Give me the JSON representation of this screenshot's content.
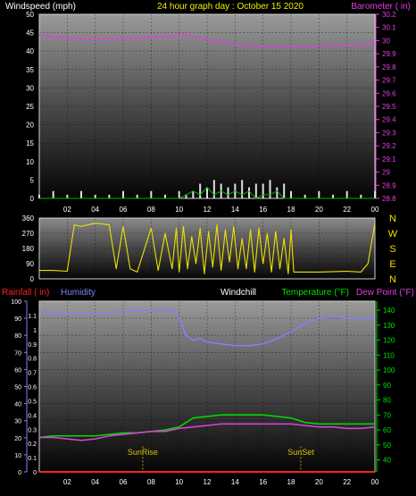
{
  "header": {
    "left": "Windspeed (mph)",
    "center": "24 hour graph day : October 15 2020",
    "right": "Barometer ( in)"
  },
  "colors": {
    "background": "#000000",
    "wind": "#e0e0e0",
    "gust": "#00b000",
    "barometer": "#e040e0",
    "direction": "#f0e000",
    "humidity": "#8080ff",
    "temperature": "#00e000",
    "dewpoint": "#e040e0",
    "rainfall": "#ff2020",
    "windchill": "#ffffff",
    "sun": "#e0c000"
  },
  "time_ticks": [
    "02",
    "04",
    "06",
    "08",
    "10",
    "12",
    "14",
    "16",
    "18",
    "20",
    "22",
    "00"
  ],
  "chart_data": [
    {
      "type": "line",
      "id": "wind_barometer",
      "title": "",
      "ylabel": "Windspeed (mph)",
      "y2label": "Barometer ( in)",
      "ylim": [
        0,
        50
      ],
      "yticks": [
        "0",
        "5",
        "10",
        "15",
        "20",
        "25",
        "30",
        "35",
        "40",
        "45",
        "50"
      ],
      "y2lim": [
        28.8,
        30.2
      ],
      "y2ticks": [
        "28.8",
        "28.9",
        "29",
        "29.1",
        "29.2",
        "29.3",
        "29.4",
        "29.5",
        "29.6",
        "29.7",
        "29.8",
        "29.9",
        "30",
        "30.1",
        "30.2"
      ],
      "xlim": [
        0,
        24
      ],
      "series": [
        {
          "axis": "y2",
          "x": [
            0,
            1,
            2,
            3,
            4,
            5,
            6,
            7,
            8,
            9,
            10,
            10.5,
            11,
            12,
            13,
            14,
            15,
            16,
            17,
            18,
            19,
            20,
            21,
            22,
            23,
            24
          ],
          "values": [
            30.04,
            30.03,
            30.02,
            30.01,
            30.01,
            30.01,
            30.02,
            30.02,
            30.03,
            30.03,
            30.04,
            30.04,
            30.03,
            30.01,
            29.99,
            29.97,
            29.96,
            29.95,
            29.95,
            29.95,
            29.95,
            29.96,
            29.96,
            29.97,
            29.97,
            29.98
          ]
        },
        {
          "axis": "y",
          "x": [
            0,
            1,
            2,
            3,
            4,
            5,
            6,
            7,
            8,
            9,
            10,
            10.5,
            11,
            11.5,
            12,
            12.5,
            13,
            13.5,
            14,
            14.5,
            15,
            15.5,
            16,
            16.5,
            17,
            17.5,
            18,
            19,
            20,
            21,
            22,
            23,
            24
          ],
          "values": [
            1,
            2,
            1,
            2,
            1,
            1,
            2,
            1,
            2,
            1,
            2,
            1,
            2,
            4,
            3,
            5,
            4,
            3,
            4,
            5,
            3,
            4,
            4,
            5,
            3,
            4,
            2,
            1,
            2,
            1,
            2,
            1,
            2
          ]
        },
        {
          "axis": "y",
          "x": [
            0,
            2,
            4,
            6,
            8,
            10,
            10.5,
            11,
            11.5,
            12,
            12.5,
            13,
            13.5,
            14,
            14.5,
            15,
            15.5,
            16,
            16.5,
            17,
            17.5,
            18,
            20,
            22,
            24
          ],
          "values": [
            0,
            0,
            0,
            0,
            0,
            0,
            1,
            2,
            1,
            3,
            1,
            2,
            1,
            2,
            1,
            2,
            0,
            1,
            1,
            2,
            0,
            0,
            0,
            0,
            0
          ]
        }
      ]
    },
    {
      "type": "line",
      "id": "wind_direction",
      "ylim": [
        0,
        360
      ],
      "yticks": [
        "0",
        "90",
        "180",
        "270",
        "360"
      ],
      "compass": [
        "N",
        "W",
        "S",
        "E",
        "N"
      ],
      "xlim": [
        0,
        24
      ],
      "series": [
        {
          "x": [
            0,
            1,
            2,
            2.5,
            3,
            4,
            5,
            5.5,
            6,
            6.5,
            7,
            8,
            8.5,
            9,
            9.5,
            9.8,
            10,
            10.3,
            10.6,
            10.9,
            11.2,
            11.5,
            11.8,
            12.1,
            12.4,
            12.7,
            13,
            13.3,
            13.6,
            13.9,
            14.2,
            14.5,
            14.8,
            15.1,
            15.4,
            15.7,
            16,
            16.3,
            16.6,
            16.9,
            17.2,
            17.5,
            17.8,
            18,
            18.2,
            20,
            22,
            23,
            23.5,
            24
          ],
          "values": [
            50,
            50,
            45,
            320,
            310,
            330,
            320,
            60,
            310,
            60,
            40,
            300,
            50,
            270,
            60,
            300,
            40,
            310,
            60,
            250,
            90,
            300,
            30,
            280,
            70,
            320,
            50,
            290,
            100,
            310,
            60,
            240,
            60,
            290,
            40,
            300,
            90,
            270,
            40,
            280,
            60,
            240,
            30,
            290,
            40,
            40,
            45,
            40,
            90,
            330
          ]
        }
      ]
    },
    {
      "type": "line",
      "id": "temp_humidity_rain",
      "ylabel_left": "Rainfall ( in)",
      "ylabel_left2": "Humidity",
      "ylabel_center": "Windchill",
      "ylabel_right": "Temperature (°F)",
      "ylabel_right2": "Dew Point (°F)",
      "humidity_ticks": [
        "0",
        "10",
        "20",
        "30",
        "40",
        "50",
        "60",
        "70",
        "80",
        "90",
        "100"
      ],
      "humidity_lim": [
        0,
        100
      ],
      "rain_ticks": [
        "0",
        "0.1",
        "0.2",
        "0.3",
        "0.4",
        "0.5",
        "0.6",
        "0.7",
        "0.8",
        "0.9",
        "1",
        "1.1"
      ],
      "rain_lim": [
        0,
        1.2
      ],
      "temp_ticks": [
        "40",
        "50",
        "60",
        "70",
        "80",
        "90",
        "100",
        "110",
        "120",
        "130",
        "140"
      ],
      "temp_lim": [
        32,
        146
      ],
      "xlim": [
        0,
        24
      ],
      "annotations": [
        {
          "label": "SunRise",
          "x": 7.4
        },
        {
          "label": "SunSet",
          "x": 18.7
        }
      ],
      "series": [
        {
          "name": "Humidity",
          "axis": "humidity",
          "x": [
            0,
            1,
            2,
            3,
            4,
            5,
            6,
            7,
            8,
            9,
            9.5,
            10,
            10.5,
            11,
            11.5,
            12,
            13,
            14,
            15,
            16,
            17,
            18,
            19,
            20,
            21,
            22,
            23,
            24
          ],
          "values": [
            94,
            92,
            93,
            93,
            93,
            93,
            94,
            94,
            95,
            95,
            95,
            90,
            80,
            77,
            78,
            76,
            75,
            74,
            74,
            75,
            78,
            82,
            87,
            90,
            91,
            90,
            90,
            90
          ]
        },
        {
          "name": "Temperature",
          "axis": "temp",
          "x": [
            0,
            1,
            2,
            3,
            4,
            5,
            6,
            7,
            8,
            9,
            10,
            10.5,
            11,
            12,
            13,
            14,
            15,
            16,
            17,
            18,
            19,
            20,
            21,
            22,
            23,
            24
          ],
          "values": [
            55,
            56,
            56,
            56,
            56,
            57,
            58,
            58,
            59,
            60,
            62,
            65,
            68,
            69,
            70,
            70,
            70,
            70,
            69,
            68,
            65,
            64,
            64,
            64,
            64,
            64
          ]
        },
        {
          "name": "Dew Point",
          "axis": "temp",
          "x": [
            0,
            1,
            2,
            3,
            4,
            5,
            6,
            7,
            8,
            9,
            10,
            11,
            12,
            13,
            14,
            15,
            16,
            17,
            18,
            19,
            20,
            21,
            22,
            23,
            24
          ],
          "values": [
            55,
            55,
            54,
            53,
            54,
            56,
            57,
            58,
            59,
            59,
            61,
            62,
            63,
            64,
            64,
            64,
            64,
            64,
            64,
            63,
            62,
            62,
            61,
            61,
            62
          ]
        },
        {
          "name": "Rainfall",
          "axis": "rain",
          "x": [
            0,
            24
          ],
          "values": [
            0,
            0
          ]
        }
      ]
    }
  ]
}
